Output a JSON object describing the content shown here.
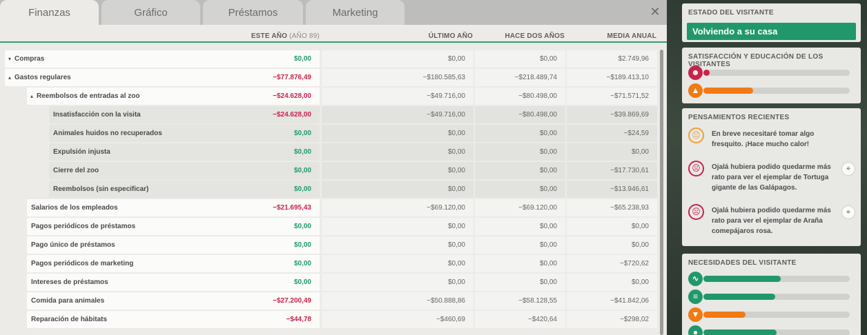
{
  "tabs": [
    {
      "label": "Finanzas",
      "active": true
    },
    {
      "label": "Gráfico",
      "active": false
    },
    {
      "label": "Préstamos",
      "active": false
    },
    {
      "label": "Marketing",
      "active": false
    }
  ],
  "close_icon": "close-icon",
  "columns": {
    "this_year": "ESTE AÑO",
    "this_year_sub": "(AÑO 89)",
    "last_year": "ÚLTIMO AÑO",
    "two_years": "HACE DOS AÑOS",
    "average": "MEDIA ANUAL"
  },
  "rows": [
    {
      "label": "Compras",
      "caret": "▾",
      "level": 0,
      "this_year": "$0,00",
      "sign": "pos",
      "last_year": "$0,00",
      "two_years": "$0,00",
      "average": "$2.749,96"
    },
    {
      "label": "Gastos regulares",
      "caret": "▴",
      "level": 0,
      "this_year": "−$77.876,49",
      "sign": "neg",
      "last_year": "−$180.585,63",
      "two_years": "−$218.489,74",
      "average": "−$189.413,10"
    },
    {
      "label": "Reembolsos de entradas al zoo",
      "caret": "▴",
      "level": 1,
      "this_year": "−$24.628,00",
      "sign": "neg",
      "last_year": "−$49.716,00",
      "two_years": "−$80.498,00",
      "average": "−$71.571,52"
    },
    {
      "label": "Insatisfacción con la visita",
      "caret": "",
      "level": 2,
      "this_year": "−$24.628,00",
      "sign": "neg",
      "last_year": "−$49.716,00",
      "two_years": "−$80.498,00",
      "average": "−$39.869,69"
    },
    {
      "label": "Animales huidos no recuperados",
      "caret": "",
      "level": 2,
      "this_year": "$0,00",
      "sign": "pos",
      "last_year": "$0,00",
      "two_years": "$0,00",
      "average": "−$24,59"
    },
    {
      "label": "Expulsión injusta",
      "caret": "",
      "level": 2,
      "this_year": "$0,00",
      "sign": "pos",
      "last_year": "$0,00",
      "two_years": "$0,00",
      "average": "$0,00"
    },
    {
      "label": "Cierre del zoo",
      "caret": "",
      "level": 2,
      "this_year": "$0,00",
      "sign": "pos",
      "last_year": "$0,00",
      "two_years": "$0,00",
      "average": "−$17.730,61"
    },
    {
      "label": "Reembolsos (sin especificar)",
      "caret": "",
      "level": 2,
      "this_year": "$0,00",
      "sign": "pos",
      "last_year": "$0,00",
      "two_years": "$0,00",
      "average": "−$13.946,61"
    },
    {
      "label": "Salarios de los empleados",
      "caret": "",
      "level": 1,
      "this_year": "−$21.695,43",
      "sign": "neg",
      "last_year": "−$69.120,00",
      "two_years": "−$69.120,00",
      "average": "−$65.238,93"
    },
    {
      "label": "Pagos periódicos de préstamos",
      "caret": "",
      "level": 1,
      "this_year": "$0,00",
      "sign": "pos",
      "last_year": "$0,00",
      "two_years": "$0,00",
      "average": "$0,00"
    },
    {
      "label": "Pago único de préstamos",
      "caret": "",
      "level": 1,
      "this_year": "$0,00",
      "sign": "pos",
      "last_year": "$0,00",
      "two_years": "$0,00",
      "average": "$0,00"
    },
    {
      "label": "Pagos periódicos de marketing",
      "caret": "",
      "level": 1,
      "this_year": "$0,00",
      "sign": "pos",
      "last_year": "$0,00",
      "two_years": "$0,00",
      "average": "−$720,62"
    },
    {
      "label": "Intereses de préstamos",
      "caret": "",
      "level": 1,
      "this_year": "$0,00",
      "sign": "pos",
      "last_year": "$0,00",
      "two_years": "$0,00",
      "average": "$0,00"
    },
    {
      "label": "Comida para animales",
      "caret": "",
      "level": 1,
      "this_year": "−$27.200,49",
      "sign": "neg",
      "last_year": "−$50.888,86",
      "two_years": "−$58.128,55",
      "average": "−$41.842,06"
    },
    {
      "label": "Reparación de hábitats",
      "caret": "",
      "level": 1,
      "this_year": "−$44,78",
      "sign": "neg",
      "last_year": "−$460,69",
      "two_years": "−$420,64",
      "average": "−$298,02"
    }
  ],
  "visitor": {
    "status_title": "ESTADO DEL VISITANTE",
    "status_value": "Volviendo a su casa",
    "status_color": "#21986c",
    "satisfaction_title": "SATISFACCIÓN Y EDUCACIÓN DE LOS VISITANTES",
    "satisfaction": [
      {
        "icon": "happy-face-icon",
        "glyph": "☻",
        "color": "#c8234a",
        "level": 0.02
      },
      {
        "icon": "graduation-cap-icon",
        "glyph": "▲",
        "color": "#f07a14",
        "level": 0.34
      }
    ],
    "thoughts_title": "PENSAMIENTOS RECIENTES",
    "thoughts": [
      {
        "icon": "neutral-face-icon",
        "glyph": "😐",
        "color": "#f0a030",
        "text": "En breve necesitaré tomar algo fresquito. ¡Hace mucho calor!",
        "pin": false
      },
      {
        "icon": "sad-face-icon",
        "glyph": "☹",
        "color": "#c8234a",
        "text": "Ojalá hubiera podido quedarme más rato para ver el ejemplar de Tortuga gigante de las Galápagos.",
        "pin": true
      },
      {
        "icon": "sad-face-icon",
        "glyph": "☹",
        "color": "#c8234a",
        "text": "Ojalá hubiera podido quedarme más rato para ver el ejemplar de Araña comepájaros rosa.",
        "pin": true
      }
    ],
    "needs_title": "NECESIDADES DEL VISITANTE",
    "needs": [
      {
        "icon": "pulse-icon",
        "glyph": "∿",
        "color": "#21986c",
        "level": 0.53
      },
      {
        "icon": "food-icon",
        "glyph": "≡",
        "color": "#21986c",
        "level": 0.49
      },
      {
        "icon": "drink-icon",
        "glyph": "▼",
        "color": "#f07a14",
        "level": 0.29
      },
      {
        "icon": "toilet-icon",
        "glyph": "●",
        "color": "#21986c",
        "level": 0.5
      }
    ]
  }
}
